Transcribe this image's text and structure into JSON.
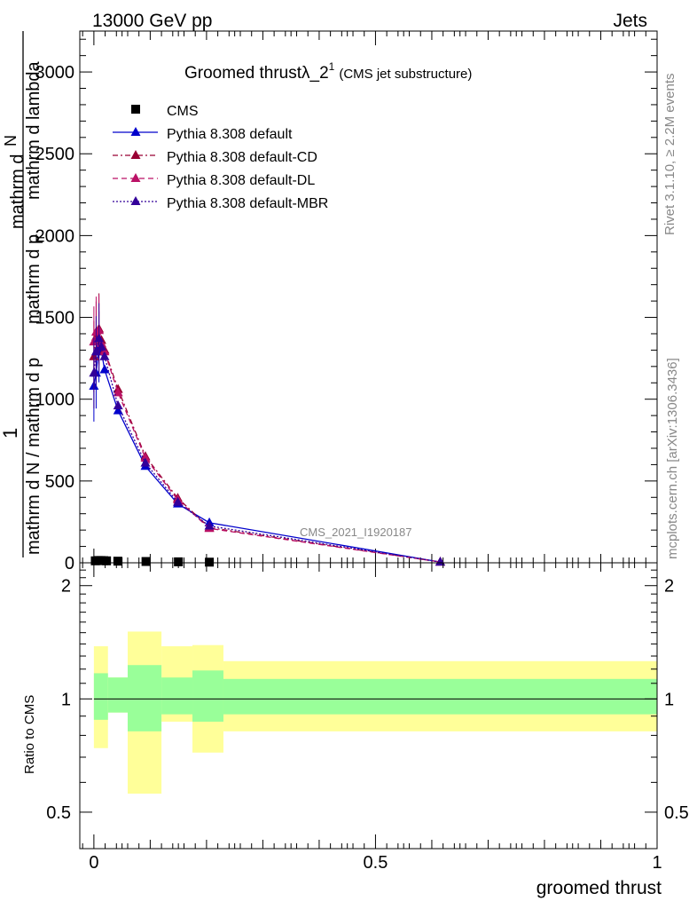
{
  "header": {
    "left": "13000 GeV pp",
    "right": "Jets"
  },
  "side_labels": {
    "rivet": "Rivet 3.1.10, ≥ 2.2M events",
    "mcplots": "mcplots.cern.ch [arXiv:1306.3436]"
  },
  "chart_data": [
    {
      "type": "line",
      "title_main": "Groomed thrustλ_2",
      "title_sup": "1",
      "title_sub": "(CMS jet substructure)",
      "ylabel_numerator": "1",
      "ylabel_den_line1": "mathrm d N / mathrm d p",
      "ylabel_den_line2": "mathrm d N / mathrm d p",
      "ylabel_num_line1": "mathrm d",
      "ylabel_num_line2": "mathrm d p",
      "ylabel_tsub": "T",
      "ylabel_num_line3": "mathrm d lambda",
      "ylabel_num_line4": "mathrm d",
      "ylabel_num_line5": "N",
      "watermark": "CMS_2021_I1920187",
      "xlim": [
        -0.025,
        1.0
      ],
      "ylim": [
        0,
        3250
      ],
      "yticks": [
        0,
        500,
        1000,
        1500,
        2000,
        2500,
        3000
      ],
      "ytick_labels": [
        "0",
        "500",
        "1000",
        "1500",
        "2000",
        "2500",
        "3000"
      ],
      "legend_position": "top-left",
      "series": [
        {
          "name": "CMS",
          "color": "#000000",
          "style": "marker-square",
          "x": [
            0.0025,
            0.0075,
            0.0125,
            0.0175,
            0.0225,
            0.0425,
            0.0925,
            0.15,
            0.205
          ],
          "y": [
            12,
            14,
            14,
            13,
            12,
            10,
            8,
            6,
            4
          ]
        },
        {
          "name": "Pythia 8.308 default",
          "color": "#0000cc",
          "style": "solid",
          "x": [
            0.0,
            0.004,
            0.009,
            0.0135,
            0.019,
            0.043,
            0.0915,
            0.149,
            0.205,
            0.615
          ],
          "y": [
            1080,
            1160,
            1320,
            1290,
            1180,
            930,
            590,
            360,
            245,
            5
          ]
        },
        {
          "name": "Pythia 8.308 default-CD",
          "color": "#990033",
          "style": "dashdot",
          "x": [
            0.0,
            0.004,
            0.009,
            0.0135,
            0.019,
            0.043,
            0.0915,
            0.149,
            0.205,
            0.615
          ],
          "y": [
            1260,
            1380,
            1430,
            1360,
            1300,
            1060,
            650,
            395,
            215,
            5
          ]
        },
        {
          "name": "Pythia 8.308 default-DL",
          "color": "#bb1166",
          "style": "dashed",
          "x": [
            0.0,
            0.004,
            0.009,
            0.0135,
            0.019,
            0.043,
            0.0915,
            0.149,
            0.205,
            0.615
          ],
          "y": [
            1350,
            1410,
            1420,
            1340,
            1290,
            1040,
            640,
            385,
            210,
            5
          ]
        },
        {
          "name": "Pythia 8.308 default-MBR",
          "color": "#330099",
          "style": "dotted",
          "x": [
            0.0,
            0.004,
            0.009,
            0.0135,
            0.019,
            0.043,
            0.0915,
            0.149,
            0.205,
            0.615
          ],
          "y": [
            1160,
            1290,
            1370,
            1320,
            1260,
            960,
            610,
            370,
            225,
            5
          ]
        }
      ]
    },
    {
      "type": "area",
      "ylabel": "Ratio to CMS",
      "xlabel": "groomed thrust",
      "xlim": [
        -0.025,
        1.0
      ],
      "ylim": [
        0.4,
        2.3
      ],
      "log_y": true,
      "yticks": [
        0.5,
        1,
        2
      ],
      "ytick_labels": [
        "0.5",
        "1",
        "2"
      ],
      "xticks": [
        0,
        0.5,
        1
      ],
      "xtick_labels": [
        "0",
        "0.5",
        "1"
      ],
      "bands": {
        "x_edges": [
          0.0,
          0.025,
          0.06,
          0.12,
          0.175,
          0.23,
          1.0
        ],
        "inner_low": [
          0.88,
          0.92,
          0.82,
          0.91,
          0.87,
          0.91
        ],
        "inner_high": [
          1.17,
          1.14,
          1.23,
          1.14,
          1.19,
          1.13
        ],
        "outer_low": [
          0.74,
          0.92,
          0.56,
          0.87,
          0.72,
          0.82
        ],
        "outer_high": [
          1.38,
          1.14,
          1.51,
          1.38,
          1.39,
          1.26
        ],
        "inner_color": "#99ff99",
        "outer_color": "#ffff99"
      }
    }
  ]
}
